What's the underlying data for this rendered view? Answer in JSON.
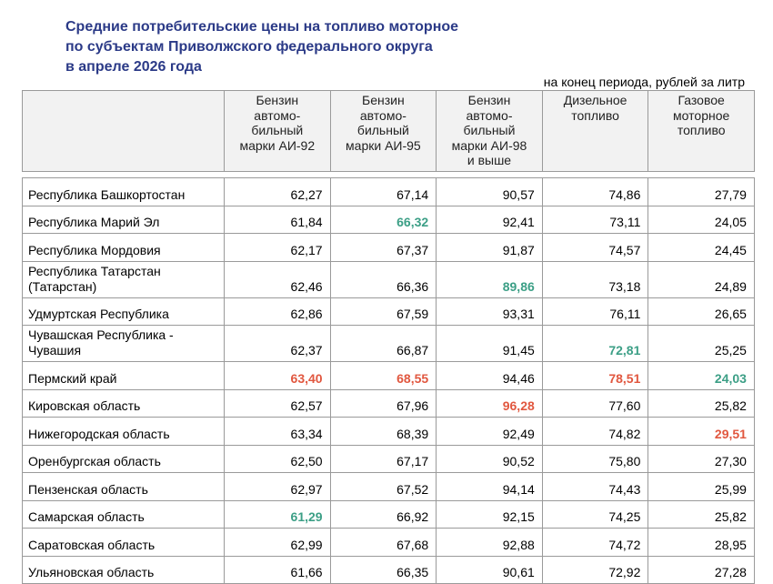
{
  "title_lines": [
    "Средние потребительские цены на топливо моторное",
    "по субъектам Приволжского федерального округа",
    "в апреле 2026 года"
  ],
  "unit_note": "на конец периода, рублей за литр",
  "columns": [
    "",
    "Бензин автомо-бильный марки АИ-92",
    "Бензин автомо-бильный марки АИ-95",
    "Бензин автомо-бильный марки АИ-98 и выше",
    "Дизельное топливо",
    "Газовое моторное топливо"
  ],
  "column_lines": [
    [],
    [
      "Бензин",
      "автомо-",
      "бильный",
      "марки АИ-92"
    ],
    [
      "Бензин",
      "автомо-",
      "бильный",
      "марки АИ-95"
    ],
    [
      "Бензин",
      "автомо-",
      "бильный",
      "марки АИ-98",
      "и выше"
    ],
    [
      "Дизельное",
      "топливо"
    ],
    [
      "Газовое",
      "моторное",
      "топливо"
    ]
  ],
  "highlight_colors": {
    "max": "#e1573f",
    "min": "#3c9f86"
  },
  "rows": [
    {
      "region": "Республика Башкортостан",
      "values": [
        "62,27",
        "67,14",
        "90,57",
        "74,86",
        "27,79"
      ],
      "flags": [
        "",
        "",
        "",
        "",
        ""
      ]
    },
    {
      "region": "Республика Марий Эл",
      "values": [
        "61,84",
        "66,32",
        "92,41",
        "73,11",
        "24,05"
      ],
      "flags": [
        "",
        "min",
        "",
        "",
        ""
      ]
    },
    {
      "region": "Республика Мордовия",
      "values": [
        "62,17",
        "67,37",
        "91,87",
        "74,57",
        "24,45"
      ],
      "flags": [
        "",
        "",
        "",
        "",
        ""
      ]
    },
    {
      "region": "Республика Татарстан (Татарстан)",
      "values": [
        "62,46",
        "66,36",
        "89,86",
        "73,18",
        "24,89"
      ],
      "flags": [
        "",
        "",
        "min",
        "",
        ""
      ]
    },
    {
      "region": "Удмуртская Республика",
      "values": [
        "62,86",
        "67,59",
        "93,31",
        "76,11",
        "26,65"
      ],
      "flags": [
        "",
        "",
        "",
        "",
        ""
      ]
    },
    {
      "region": "Чувашская Республика - Чувашия",
      "values": [
        "62,37",
        "66,87",
        "91,45",
        "72,81",
        "25,25"
      ],
      "flags": [
        "",
        "",
        "",
        "min",
        ""
      ]
    },
    {
      "region": "Пермский край",
      "values": [
        "63,40",
        "68,55",
        "94,46",
        "78,51",
        "24,03"
      ],
      "flags": [
        "max",
        "max",
        "",
        "max",
        "min"
      ]
    },
    {
      "region": "Кировская область",
      "values": [
        "62,57",
        "67,96",
        "96,28",
        "77,60",
        "25,82"
      ],
      "flags": [
        "",
        "",
        "max",
        "",
        ""
      ]
    },
    {
      "region": "Нижегородская область",
      "values": [
        "63,34",
        "68,39",
        "92,49",
        "74,82",
        "29,51"
      ],
      "flags": [
        "",
        "",
        "",
        "",
        "max"
      ]
    },
    {
      "region": "Оренбургская область",
      "values": [
        "62,50",
        "67,17",
        "90,52",
        "75,80",
        "27,30"
      ],
      "flags": [
        "",
        "",
        "",
        "",
        ""
      ]
    },
    {
      "region": "Пензенская область",
      "values": [
        "62,97",
        "67,52",
        "94,14",
        "74,43",
        "25,99"
      ],
      "flags": [
        "",
        "",
        "",
        "",
        ""
      ]
    },
    {
      "region": "Самарская область",
      "values": [
        "61,29",
        "66,92",
        "92,15",
        "74,25",
        "25,82"
      ],
      "flags": [
        "min",
        "",
        "",
        "",
        ""
      ]
    },
    {
      "region": "Саратовская область",
      "values": [
        "62,99",
        "67,68",
        "92,88",
        "74,72",
        "28,95"
      ],
      "flags": [
        "",
        "",
        "",
        "",
        ""
      ]
    },
    {
      "region": "Ульяновская область",
      "values": [
        "61,66",
        "66,35",
        "90,61",
        "72,92",
        "27,28"
      ],
      "flags": [
        "",
        "",
        "",
        "",
        ""
      ]
    }
  ],
  "region_lines": {
    "3": [
      "Республика Татарстан",
      "(Татарстан)"
    ],
    "5": [
      "Чувашская Республика -",
      "Чувашия"
    ]
  }
}
